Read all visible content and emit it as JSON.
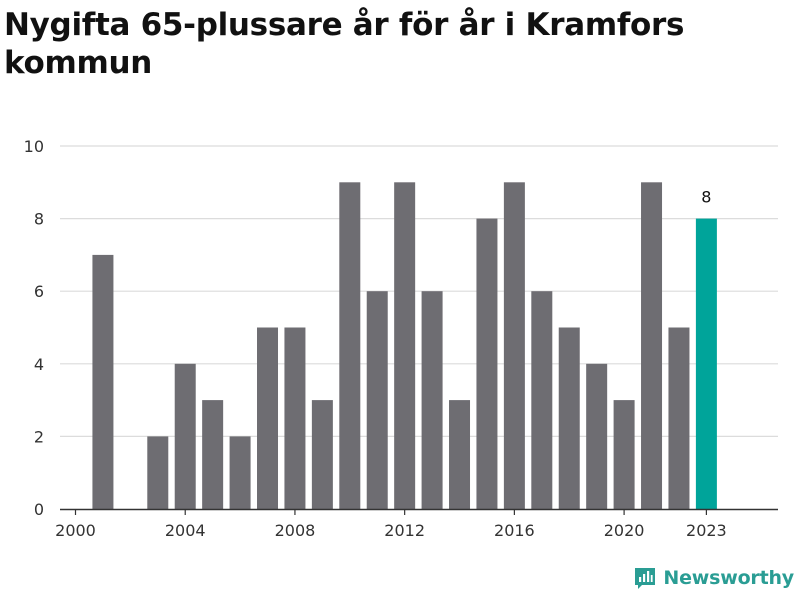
{
  "chart_data": {
    "type": "bar",
    "title": "Nygifta 65-plussare år för år i Kramfors kommun",
    "x": [
      2000,
      2001,
      2002,
      2003,
      2004,
      2005,
      2006,
      2007,
      2008,
      2009,
      2010,
      2011,
      2012,
      2013,
      2014,
      2015,
      2016,
      2017,
      2018,
      2019,
      2020,
      2021,
      2022,
      2023
    ],
    "values": [
      0,
      7,
      0,
      2,
      4,
      3,
      2,
      5,
      5,
      3,
      9,
      6,
      9,
      6,
      3,
      8,
      9,
      6,
      5,
      4,
      3,
      9,
      5,
      8
    ],
    "x_tick_labels": [
      "2000",
      "2004",
      "2008",
      "2012",
      "2016",
      "2020",
      "2023"
    ],
    "y_tick_labels": [
      "0",
      "2",
      "4",
      "6",
      "8",
      "10"
    ],
    "ylim": [
      0,
      10
    ],
    "grid": true,
    "highlight": {
      "index": 23,
      "label": "8"
    },
    "colors": {
      "bar": "#6e6d72",
      "highlight": "#00a49a",
      "grid": "#dcdcdc",
      "axis": "#333333",
      "text": "#333333"
    },
    "xlabel": "",
    "ylabel": ""
  },
  "brand": {
    "name": "Newsworthy",
    "icon": "newsworthy-logo-icon",
    "color": "#2a9d94"
  }
}
